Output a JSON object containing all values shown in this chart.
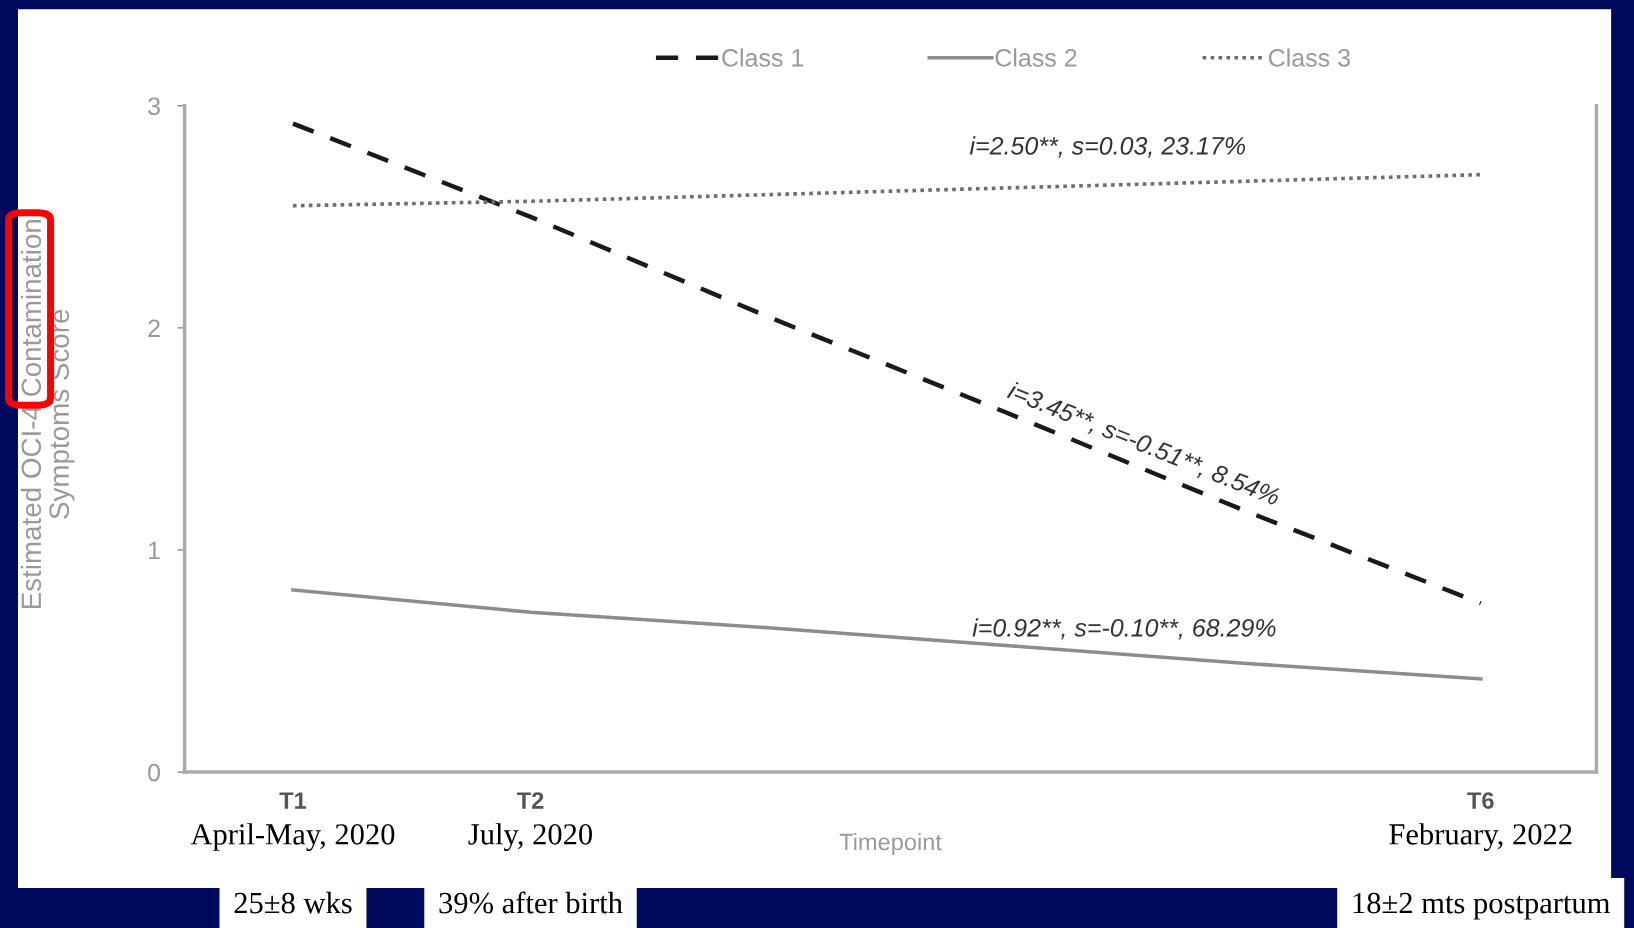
{
  "chart_data": {
    "type": "line",
    "ylabel": "Estimated OCI-4 Contamination\nSymptoms Score",
    "xlabel": "Timepoint",
    "categories": [
      "T1",
      "T2",
      null,
      null,
      null,
      "T6"
    ],
    "ylim": [
      0,
      3
    ],
    "yticks": [
      0,
      1,
      2,
      3
    ],
    "series": [
      {
        "name": "Class 1",
        "color": "#1a1a1a",
        "line_style": "dashed",
        "values": [
          2.92,
          2.5,
          2.05,
          1.62,
          1.18,
          0.76
        ]
      },
      {
        "name": "Class 2",
        "color": "#8c8c8c",
        "line_style": "solid",
        "values": [
          0.82,
          0.72,
          0.65,
          0.57,
          0.49,
          0.42
        ]
      },
      {
        "name": "Class 3",
        "color": "#6e6e6e",
        "line_style": "dotted",
        "values": [
          2.55,
          2.57,
          2.6,
          2.63,
          2.66,
          2.69
        ]
      }
    ],
    "legend": "top",
    "grid": false,
    "marker": "none",
    "annotations": [
      "i=2.50**, s=0.03, 23.17%",
      "i=3.45**, s=-0.51**, 8.54%",
      "i=0.92**, s=-0.10**, 68.29%",
      "April-May, 2020",
      "July, 2020",
      "February, 2022",
      "25±8 wks",
      "39% after birth",
      "18±2 mts postpartum"
    ]
  }
}
